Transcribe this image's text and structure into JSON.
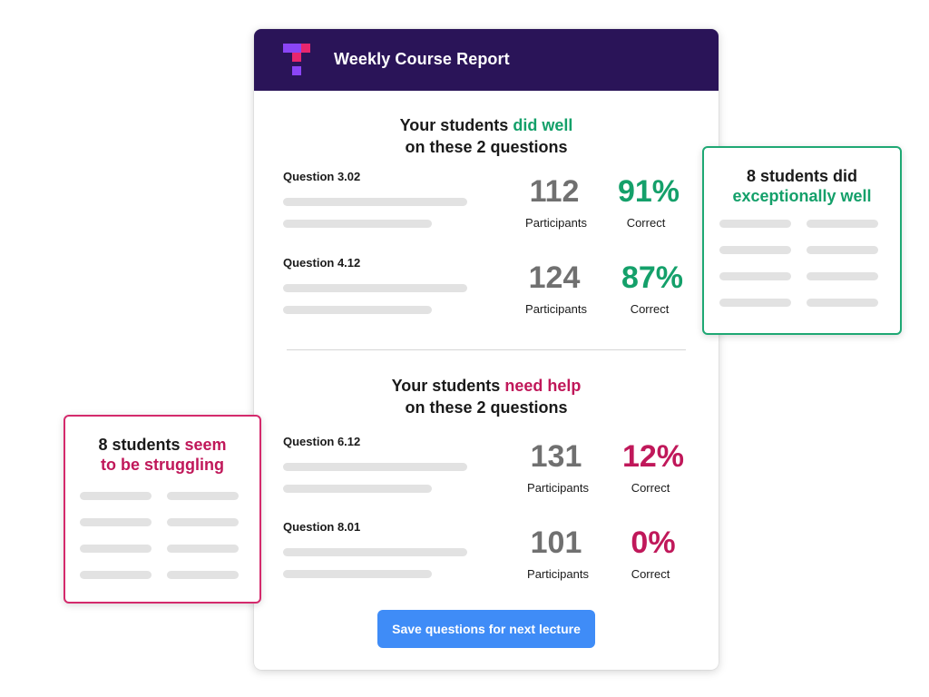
{
  "header": {
    "title": "Weekly Course Report"
  },
  "well_section": {
    "title_prefix": "Your students ",
    "title_highlight": "did well",
    "title_line2": "on these 2 questions",
    "questions": [
      {
        "label": "Question 3.02",
        "participants": "112",
        "participants_caption": "Participants",
        "correct": "91%",
        "correct_caption": "Correct"
      },
      {
        "label": "Question 4.12",
        "participants": "124",
        "participants_caption": "Participants",
        "correct": "87%",
        "correct_caption": "Correct"
      }
    ]
  },
  "help_section": {
    "title_prefix": "Your students ",
    "title_highlight": "need help",
    "title_line2": "on these 2 questions",
    "questions": [
      {
        "label": "Question 6.12",
        "participants": "131",
        "participants_caption": "Participants",
        "correct": "12%",
        "correct_caption": "Correct"
      },
      {
        "label": "Question 8.01",
        "participants": "101",
        "participants_caption": "Participants",
        "correct": "0%",
        "correct_caption": "Correct"
      }
    ]
  },
  "save_button": {
    "label": "Save questions for next lecture"
  },
  "well_card": {
    "line1": "8 students did",
    "line2": "exceptionally well"
  },
  "struggle_card": {
    "line1_prefix": "8 students ",
    "line1_highlight": "seem",
    "line2": "to be struggling"
  },
  "colors": {
    "header_bg": "#2a1458",
    "good": "#14a06a",
    "bad": "#c0185a",
    "button": "#3f8cf7",
    "logo_purple": "#8b45f5",
    "logo_pink": "#e8266e"
  }
}
